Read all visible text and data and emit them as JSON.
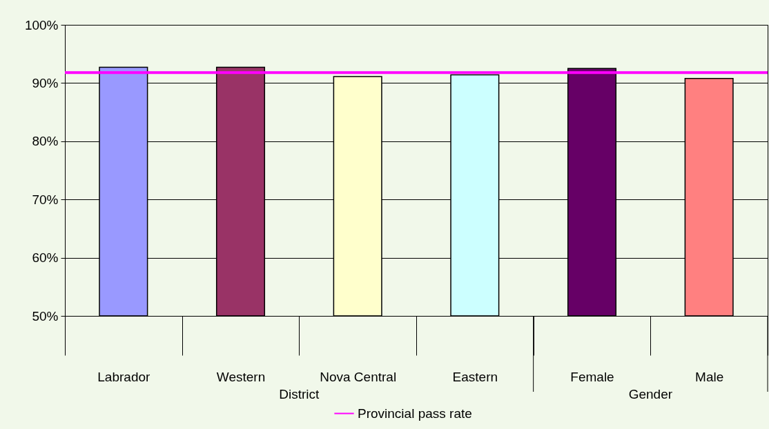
{
  "chart_data": {
    "type": "bar",
    "categories": [
      "Labrador",
      "Western",
      "Nova Central",
      "Eastern",
      "Female",
      "Male"
    ],
    "values": [
      92.7,
      92.7,
      91.1,
      91.4,
      92.5,
      90.8
    ],
    "colors": [
      "#9999ff",
      "#993366",
      "#ffffcc",
      "#ccffff",
      "#660066",
      "#ff8080"
    ],
    "ylim": [
      50,
      100
    ],
    "yticks": [
      {
        "value": 50,
        "label": "50%"
      },
      {
        "value": 60,
        "label": "60%"
      },
      {
        "value": 70,
        "label": "70%"
      },
      {
        "value": 80,
        "label": "80%"
      },
      {
        "value": 90,
        "label": "90%"
      },
      {
        "value": 100,
        "label": "100%"
      }
    ],
    "grid": "y",
    "legend": "bottom",
    "ref_lines": [
      {
        "axis": "y",
        "value": 91.8,
        "label": "Provincial pass rate",
        "color": "#ff00ff"
      }
    ],
    "annotations": [
      "District",
      "Gender"
    ]
  }
}
